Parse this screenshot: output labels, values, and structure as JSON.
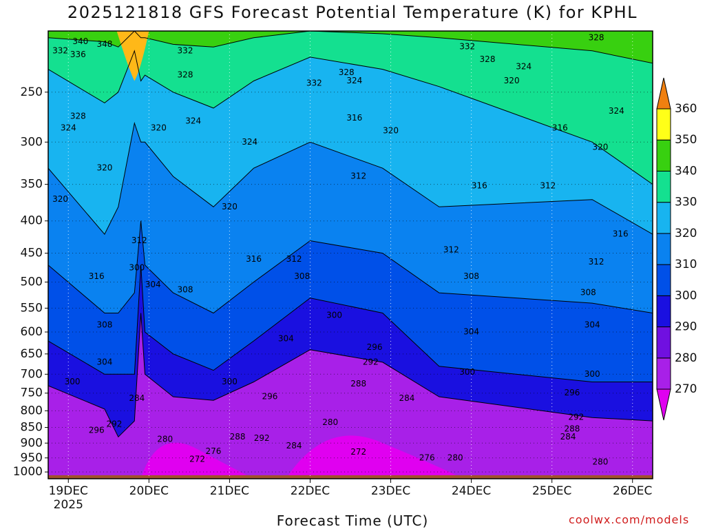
{
  "title": "2025121818 GFS Forecast Potential Temperature (K) for KPHL",
  "credit": "coolwx.com/models",
  "chart_data": {
    "type": "heatmap",
    "title": "2025121818 GFS Forecast Potential Temperature (K) for KPHL",
    "xlabel": "Forecast Time (UTC)",
    "ylabel": "",
    "x_ticks": [
      {
        "label": "19DEC",
        "sub": "2025",
        "day": 0
      },
      {
        "label": "20DEC",
        "sub": "",
        "day": 1
      },
      {
        "label": "21DEC",
        "sub": "",
        "day": 2
      },
      {
        "label": "22DEC",
        "sub": "",
        "day": 3
      },
      {
        "label": "23DEC",
        "sub": "",
        "day": 4
      },
      {
        "label": "24DEC",
        "sub": "",
        "day": 5
      },
      {
        "label": "25DEC",
        "sub": "",
        "day": 6
      },
      {
        "label": "26DEC",
        "sub": "",
        "day": 7
      }
    ],
    "xlim_days": [
      -0.25,
      7.25
    ],
    "y_ticks": [
      250,
      300,
      350,
      400,
      450,
      500,
      550,
      600,
      650,
      700,
      750,
      800,
      850,
      900,
      950,
      1000
    ],
    "ylim_hpa": [
      1025,
      200
    ],
    "y_scale": "log-pressure",
    "colorbar": {
      "levels": [
        270,
        280,
        290,
        300,
        310,
        320,
        330,
        340,
        350,
        360
      ],
      "colors": [
        "#e000f0",
        "#a820e8",
        "#7010e0",
        "#1a10e0",
        "#0050e8",
        "#0a82f0",
        "#18b4f0",
        "#14e090",
        "#38d010",
        "#a8e018",
        "#ffff18",
        "#ffb818",
        "#f08010"
      ]
    },
    "series": [
      {
        "level": 290,
        "points": [
          [
            -0.25,
            730
          ],
          [
            0.45,
            795
          ],
          [
            0.62,
            880
          ],
          [
            0.82,
            830
          ],
          [
            0.9,
            560
          ],
          [
            0.95,
            700
          ],
          [
            1.3,
            760
          ],
          [
            1.8,
            770
          ],
          [
            2.3,
            720
          ],
          [
            3.0,
            640
          ],
          [
            3.9,
            670
          ],
          [
            4.6,
            760
          ],
          [
            6.5,
            820
          ],
          [
            7.25,
            830
          ]
        ]
      },
      {
        "level": 300,
        "points": [
          [
            -0.25,
            620
          ],
          [
            0.45,
            700
          ],
          [
            0.62,
            700
          ],
          [
            0.82,
            700
          ],
          [
            0.9,
            470
          ],
          [
            0.95,
            600
          ],
          [
            1.3,
            650
          ],
          [
            1.8,
            690
          ],
          [
            2.3,
            620
          ],
          [
            3.0,
            530
          ],
          [
            3.9,
            560
          ],
          [
            4.6,
            680
          ],
          [
            6.5,
            720
          ],
          [
            7.25,
            720
          ]
        ]
      },
      {
        "level": 310,
        "points": [
          [
            -0.25,
            470
          ],
          [
            0.45,
            560
          ],
          [
            0.62,
            560
          ],
          [
            0.82,
            520
          ],
          [
            0.9,
            400
          ],
          [
            0.95,
            470
          ],
          [
            1.3,
            520
          ],
          [
            1.8,
            560
          ],
          [
            2.3,
            500
          ],
          [
            3.0,
            430
          ],
          [
            3.9,
            450
          ],
          [
            4.6,
            520
          ],
          [
            6.5,
            540
          ],
          [
            7.25,
            560
          ]
        ]
      },
      {
        "level": 320,
        "points": [
          [
            -0.25,
            330
          ],
          [
            0.45,
            420
          ],
          [
            0.62,
            380
          ],
          [
            0.82,
            280
          ],
          [
            0.9,
            300
          ],
          [
            0.95,
            300
          ],
          [
            1.3,
            340
          ],
          [
            1.8,
            380
          ],
          [
            2.3,
            330
          ],
          [
            3.0,
            300
          ],
          [
            3.9,
            330
          ],
          [
            4.6,
            380
          ],
          [
            6.5,
            370
          ],
          [
            7.25,
            420
          ]
        ]
      },
      {
        "level": 330,
        "points": [
          [
            -0.25,
            230
          ],
          [
            0.45,
            260
          ],
          [
            0.62,
            250
          ],
          [
            0.82,
            215
          ],
          [
            0.9,
            240
          ],
          [
            0.95,
            235
          ],
          [
            1.3,
            250
          ],
          [
            1.8,
            265
          ],
          [
            2.3,
            240
          ],
          [
            3.0,
            220
          ],
          [
            3.9,
            230
          ],
          [
            4.6,
            245
          ],
          [
            6.5,
            300
          ],
          [
            7.25,
            350
          ]
        ]
      },
      {
        "level": 340,
        "points": [
          [
            -0.25,
            205
          ],
          [
            0.45,
            208
          ],
          [
            0.62,
            212
          ],
          [
            0.82,
            200
          ],
          [
            0.9,
            205
          ],
          [
            0.95,
            205
          ],
          [
            1.3,
            210
          ],
          [
            1.8,
            212
          ],
          [
            2.3,
            205
          ],
          [
            3.0,
            200
          ],
          [
            3.9,
            202
          ],
          [
            4.6,
            205
          ],
          [
            6.5,
            215
          ],
          [
            7.25,
            225
          ]
        ]
      }
    ],
    "contour_labels": [
      {
        "text": "332",
        "day": -0.1,
        "p": 215
      },
      {
        "text": "340",
        "day": 0.15,
        "p": 208
      },
      {
        "text": "348",
        "day": 0.45,
        "p": 210
      },
      {
        "text": "336",
        "day": 0.12,
        "p": 218
      },
      {
        "text": "328",
        "day": 0.12,
        "p": 273
      },
      {
        "text": "324",
        "day": 0.0,
        "p": 285
      },
      {
        "text": "320",
        "day": 0.45,
        "p": 330
      },
      {
        "text": "320",
        "day": -0.1,
        "p": 370
      },
      {
        "text": "332",
        "day": 1.45,
        "p": 215
      },
      {
        "text": "328",
        "day": 1.45,
        "p": 235
      },
      {
        "text": "324",
        "day": 1.55,
        "p": 278
      },
      {
        "text": "320",
        "day": 1.12,
        "p": 285
      },
      {
        "text": "324",
        "day": 2.25,
        "p": 300
      },
      {
        "text": "320",
        "day": 2.0,
        "p": 380
      },
      {
        "text": "312",
        "day": 0.88,
        "p": 430
      },
      {
        "text": "300",
        "day": 0.85,
        "p": 475
      },
      {
        "text": "304",
        "day": 1.05,
        "p": 505
      },
      {
        "text": "308",
        "day": 1.45,
        "p": 515
      },
      {
        "text": "316",
        "day": 0.35,
        "p": 490
      },
      {
        "text": "316",
        "day": 2.3,
        "p": 460
      },
      {
        "text": "312",
        "day": 2.8,
        "p": 460
      },
      {
        "text": "308",
        "day": 2.9,
        "p": 490
      },
      {
        "text": "308",
        "day": 0.45,
        "p": 585
      },
      {
        "text": "304",
        "day": 0.45,
        "p": 670
      },
      {
        "text": "300",
        "day": 0.05,
        "p": 720
      },
      {
        "text": "296",
        "day": 0.35,
        "p": 860
      },
      {
        "text": "292",
        "day": 0.57,
        "p": 840
      },
      {
        "text": "284",
        "day": 0.85,
        "p": 765
      },
      {
        "text": "280",
        "day": 1.2,
        "p": 888
      },
      {
        "text": "276",
        "day": 1.8,
        "p": 928
      },
      {
        "text": "272",
        "day": 1.6,
        "p": 955
      },
      {
        "text": "288",
        "day": 2.1,
        "p": 880
      },
      {
        "text": "292",
        "day": 2.4,
        "p": 885
      },
      {
        "text": "296",
        "day": 2.5,
        "p": 760
      },
      {
        "text": "300",
        "day": 2.0,
        "p": 720
      },
      {
        "text": "284",
        "day": 2.8,
        "p": 910
      },
      {
        "text": "304",
        "day": 2.7,
        "p": 615
      },
      {
        "text": "300",
        "day": 3.3,
        "p": 565
      },
      {
        "text": "296",
        "day": 3.8,
        "p": 635
      },
      {
        "text": "292",
        "day": 3.75,
        "p": 670
      },
      {
        "text": "288",
        "day": 3.6,
        "p": 725
      },
      {
        "text": "284",
        "day": 4.2,
        "p": 765
      },
      {
        "text": "280",
        "day": 3.25,
        "p": 835
      },
      {
        "text": "272",
        "day": 3.6,
        "p": 930
      },
      {
        "text": "276",
        "day": 4.45,
        "p": 950
      },
      {
        "text": "280",
        "day": 4.8,
        "p": 950
      },
      {
        "text": "316",
        "day": 3.55,
        "p": 275
      },
      {
        "text": "324",
        "day": 3.55,
        "p": 240
      },
      {
        "text": "328",
        "day": 3.45,
        "p": 233
      },
      {
        "text": "332",
        "day": 3.05,
        "p": 242
      },
      {
        "text": "320",
        "day": 4.0,
        "p": 288
      },
      {
        "text": "312",
        "day": 3.6,
        "p": 340
      },
      {
        "text": "316",
        "day": 5.1,
        "p": 352
      },
      {
        "text": "312",
        "day": 4.75,
        "p": 445
      },
      {
        "text": "308",
        "day": 5.0,
        "p": 490
      },
      {
        "text": "304",
        "day": 5.0,
        "p": 600
      },
      {
        "text": "300",
        "day": 4.95,
        "p": 695
      },
      {
        "text": "332",
        "day": 4.95,
        "p": 212
      },
      {
        "text": "328",
        "day": 5.2,
        "p": 222
      },
      {
        "text": "324",
        "day": 5.65,
        "p": 228
      },
      {
        "text": "320",
        "day": 5.5,
        "p": 240
      },
      {
        "text": "316",
        "day": 6.1,
        "p": 285
      },
      {
        "text": "312",
        "day": 5.95,
        "p": 352
      },
      {
        "text": "328",
        "day": 6.55,
        "p": 205
      },
      {
        "text": "324",
        "day": 6.8,
        "p": 268
      },
      {
        "text": "320",
        "day": 6.6,
        "p": 306
      },
      {
        "text": "316",
        "day": 6.85,
        "p": 420
      },
      {
        "text": "312",
        "day": 6.55,
        "p": 465
      },
      {
        "text": "308",
        "day": 6.45,
        "p": 520
      },
      {
        "text": "304",
        "day": 6.5,
        "p": 585
      },
      {
        "text": "300",
        "day": 6.5,
        "p": 700
      },
      {
        "text": "296",
        "day": 6.25,
        "p": 750
      },
      {
        "text": "292",
        "day": 6.3,
        "p": 820
      },
      {
        "text": "288",
        "day": 6.25,
        "p": 855
      },
      {
        "text": "284",
        "day": 6.2,
        "p": 880
      },
      {
        "text": "280",
        "day": 6.6,
        "p": 965
      }
    ],
    "grid": true,
    "legend": "right"
  }
}
